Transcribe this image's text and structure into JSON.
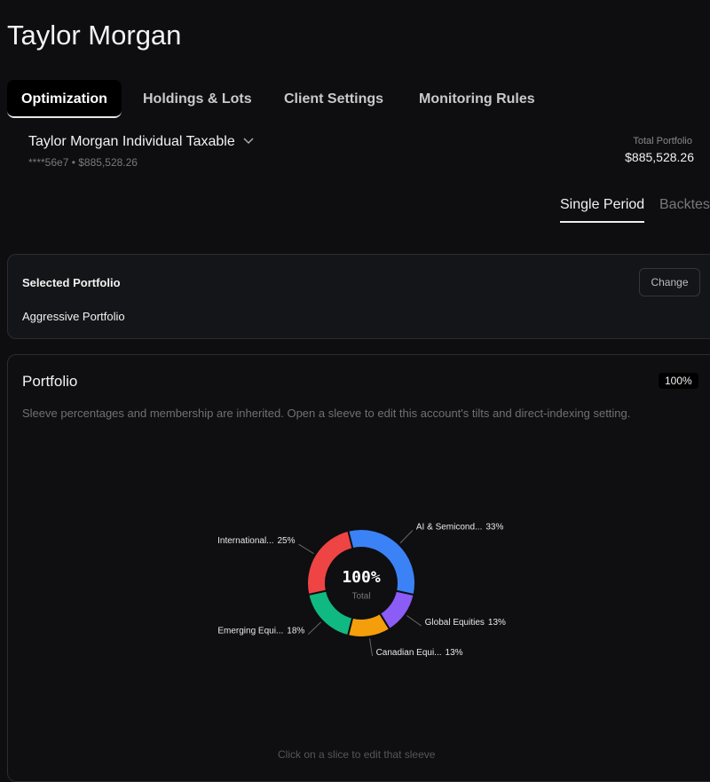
{
  "header": {
    "title": "Taylor Morgan"
  },
  "tabs": [
    "Optimization",
    "Holdings & Lots",
    "Client Settings",
    "Monitoring Rules"
  ],
  "account": {
    "name": "Taylor Morgan Individual Taxable",
    "subtitle": "****56e7 • $885,528.26",
    "total_label": "Total Portfolio",
    "total_value": "$885,528.26"
  },
  "period_tabs": [
    "Single Period",
    "Backtest"
  ],
  "selected_portfolio": {
    "title": "Selected Portfolio",
    "button": "Change",
    "name": "Aggressive Portfolio"
  },
  "portfolio": {
    "title": "Portfolio",
    "badge": "100%",
    "description": "Sleeve percentages and membership are inherited. Open a sleeve to edit this account's tilts and direct-indexing setting.",
    "footer": "Click on a slice to edit that sleeve"
  },
  "chart_data": {
    "type": "pie",
    "donut": true,
    "center_value": "100%",
    "center_label": "Total",
    "categories": [
      "AI & Semicond...",
      "Global Equities",
      "Canadian Equi...",
      "Emerging Equi...",
      "International..."
    ],
    "values": [
      33,
      13,
      13,
      18,
      25
    ],
    "value_labels": [
      "33%",
      "13%",
      "13%",
      "18%",
      "25%"
    ],
    "colors": [
      "#3b82f6",
      "#8b5cf6",
      "#f59e0b",
      "#10b981",
      "#ef4444"
    ]
  }
}
